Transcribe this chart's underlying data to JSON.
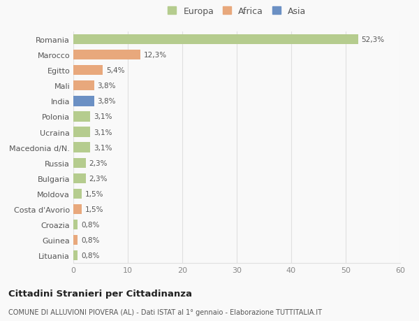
{
  "categories": [
    "Romania",
    "Marocco",
    "Egitto",
    "Mali",
    "India",
    "Polonia",
    "Ucraina",
    "Macedonia d/N.",
    "Russia",
    "Bulgaria",
    "Moldova",
    "Costa d'Avorio",
    "Croazia",
    "Guinea",
    "Lituania"
  ],
  "values": [
    52.3,
    12.3,
    5.4,
    3.8,
    3.8,
    3.1,
    3.1,
    3.1,
    2.3,
    2.3,
    1.5,
    1.5,
    0.8,
    0.8,
    0.8
  ],
  "labels": [
    "52,3%",
    "12,3%",
    "5,4%",
    "3,8%",
    "3,8%",
    "3,1%",
    "3,1%",
    "3,1%",
    "2,3%",
    "2,3%",
    "1,5%",
    "1,5%",
    "0,8%",
    "0,8%",
    "0,8%"
  ],
  "continents": [
    "Europa",
    "Africa",
    "Africa",
    "Africa",
    "Asia",
    "Europa",
    "Europa",
    "Europa",
    "Europa",
    "Europa",
    "Europa",
    "Africa",
    "Europa",
    "Africa",
    "Europa"
  ],
  "colors": {
    "Europa": "#b5cc8e",
    "Africa": "#e8a87c",
    "Asia": "#6b90c4"
  },
  "background_color": "#f9f9f9",
  "title": "Cittadini Stranieri per Cittadinanza",
  "subtitle": "COMUNE DI ALLUVIONI PIOVERA (AL) - Dati ISTAT al 1° gennaio - Elaborazione TUTTITALIA.IT",
  "xlim": [
    0,
    60
  ],
  "xticks": [
    0,
    10,
    20,
    30,
    40,
    50,
    60
  ],
  "grid_color": "#e0e0e0",
  "bar_height": 0.65,
  "legend_order": [
    "Europa",
    "Africa",
    "Asia"
  ]
}
